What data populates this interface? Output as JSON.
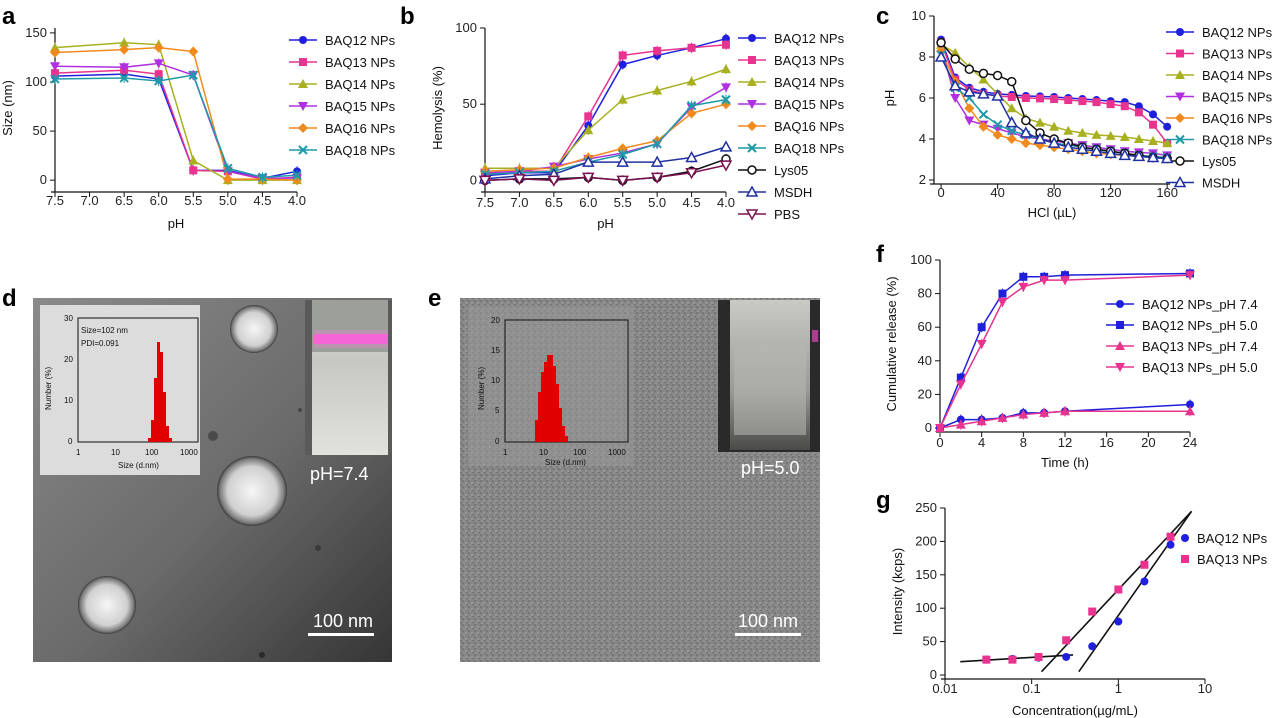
{
  "panels": {
    "a": "a",
    "b": "b",
    "c": "c",
    "d": "d",
    "e": "e",
    "f": "f",
    "g": "g"
  },
  "colors": {
    "BAQ12": "#1f1fdc",
    "BAQ13": "#e8338f",
    "BAQ14": "#a8b020",
    "BAQ15": "#b030e0",
    "BAQ16": "#f08a1e",
    "BAQ18": "#1f9aa8",
    "Lys05": "#111111",
    "MSDH": "#2030a0",
    "PBS": "#7a1050"
  },
  "chart_data": [
    {
      "id": "a",
      "type": "line",
      "xlabel": "pH",
      "ylabel": "Size (nm)",
      "x": [
        7.5,
        6.5,
        6.0,
        5.5,
        5.0,
        4.5,
        4.0
      ],
      "xticks": [
        "7.5",
        "7.0",
        "6.5",
        "6.0",
        "5.5",
        "5.0",
        "4.5",
        "4.0"
      ],
      "yticks": [
        "0",
        "50",
        "100",
        "150"
      ],
      "xlim": [
        7.5,
        4.0
      ],
      "ylim": [
        -8,
        155
      ],
      "series": [
        {
          "name": "BAQ12 NPs",
          "key": "BAQ12",
          "marker": "circle",
          "values": [
            106,
            108,
            103,
            10,
            10,
            2,
            9
          ]
        },
        {
          "name": "BAQ13 NPs",
          "key": "BAQ13",
          "marker": "square",
          "values": [
            109,
            112,
            108,
            10,
            9,
            1,
            3
          ]
        },
        {
          "name": "BAQ14 NPs",
          "key": "BAQ14",
          "marker": "triangle",
          "values": [
            135,
            140,
            138,
            20,
            0,
            0,
            0
          ]
        },
        {
          "name": "BAQ15 NPs",
          "key": "BAQ15",
          "marker": "tri-down",
          "values": [
            116,
            115,
            119,
            107,
            9,
            2,
            2
          ]
        },
        {
          "name": "BAQ16 NPs",
          "key": "BAQ16",
          "marker": "diamond",
          "values": [
            130,
            133,
            135,
            131,
            1,
            1,
            0
          ]
        },
        {
          "name": "BAQ18 NPs",
          "key": "BAQ18",
          "marker": "x",
          "values": [
            103,
            104,
            101,
            107,
            12,
            3,
            5
          ]
        }
      ]
    },
    {
      "id": "b",
      "type": "line",
      "xlabel": "pH",
      "ylabel": "Hemolysis (%)",
      "x": [
        7.5,
        7.0,
        6.5,
        6.0,
        5.5,
        5.0,
        4.5,
        4.0
      ],
      "xticks": [
        "7.5",
        "7.0",
        "6.5",
        "6.0",
        "5.5",
        "5.0",
        "4.5",
        "4.0"
      ],
      "yticks": [
        "0",
        "50",
        "100"
      ],
      "xlim": [
        7.5,
        4.0
      ],
      "ylim": [
        -5,
        100
      ],
      "series": [
        {
          "name": "BAQ12 NPs",
          "key": "BAQ12",
          "marker": "circle",
          "values": [
            3,
            5,
            5,
            36,
            76,
            82,
            87,
            93
          ]
        },
        {
          "name": "BAQ13 NPs",
          "key": "BAQ13",
          "marker": "square",
          "values": [
            4,
            6,
            6,
            42,
            82,
            85,
            87,
            89
          ]
        },
        {
          "name": "BAQ14 NPs",
          "key": "BAQ14",
          "marker": "triangle",
          "values": [
            8,
            8,
            8,
            33,
            53,
            59,
            65,
            73
          ]
        },
        {
          "name": "BAQ15 NPs",
          "key": "BAQ15",
          "marker": "tri-down",
          "values": [
            5,
            6,
            9,
            14,
            18,
            24,
            48,
            61
          ]
        },
        {
          "name": "BAQ16 NPs",
          "key": "BAQ16",
          "marker": "diamond",
          "values": [
            6,
            7,
            8,
            15,
            21,
            26,
            44,
            50
          ]
        },
        {
          "name": "BAQ18 NPs",
          "key": "BAQ18",
          "marker": "x",
          "values": [
            4,
            5,
            6,
            12,
            17,
            24,
            49,
            53
          ]
        },
        {
          "name": "Lys05",
          "key": "Lys05",
          "marker": "open-circle",
          "values": [
            0,
            1,
            1,
            2,
            0,
            2,
            6,
            14
          ]
        },
        {
          "name": "MSDH",
          "key": "MSDH",
          "marker": "open-triangle",
          "values": [
            1,
            3,
            4,
            12,
            12,
            12,
            15,
            22
          ]
        },
        {
          "name": "PBS",
          "key": "PBS",
          "marker": "open-tri-down",
          "values": [
            0,
            1,
            0,
            2,
            0,
            2,
            5,
            10
          ]
        }
      ]
    },
    {
      "id": "c",
      "type": "line",
      "xlabel": "HCl (µL)",
      "ylabel": "pH",
      "xticks": [
        "0",
        "40",
        "80",
        "120",
        "160"
      ],
      "yticks": [
        "2",
        "4",
        "6",
        "8",
        "10"
      ],
      "xlim": [
        -5,
        162
      ],
      "ylim": [
        2,
        10
      ],
      "series": [
        {
          "name": "BAQ12 NPs",
          "key": "BAQ12",
          "marker": "circle",
          "x": [
            0,
            10,
            20,
            30,
            40,
            50,
            60,
            70,
            80,
            90,
            100,
            110,
            120,
            130,
            140,
            150,
            160
          ],
          "values": [
            8.85,
            7.0,
            6.5,
            6.3,
            6.2,
            6.15,
            6.1,
            6.08,
            6.05,
            6.0,
            5.95,
            5.9,
            5.85,
            5.8,
            5.6,
            5.2,
            4.6
          ]
        },
        {
          "name": "BAQ13 NPs",
          "key": "BAQ13",
          "marker": "square",
          "x": [
            0,
            10,
            20,
            30,
            40,
            50,
            60,
            70,
            80,
            90,
            100,
            110,
            120,
            130,
            140,
            150,
            160
          ],
          "values": [
            8.7,
            6.9,
            6.4,
            6.2,
            6.1,
            6.05,
            6.0,
            5.98,
            5.95,
            5.9,
            5.85,
            5.8,
            5.7,
            5.6,
            5.3,
            4.7,
            3.8
          ]
        },
        {
          "name": "BAQ14 NPs",
          "key": "BAQ14",
          "marker": "triangle",
          "x": [
            0,
            10,
            20,
            30,
            40,
            50,
            60,
            70,
            80,
            90,
            100,
            110,
            120,
            130,
            140,
            150,
            160
          ],
          "values": [
            8.6,
            8.2,
            7.5,
            6.9,
            6.2,
            5.5,
            5.0,
            4.8,
            4.6,
            4.4,
            4.3,
            4.2,
            4.15,
            4.1,
            4.0,
            3.9,
            3.8
          ]
        },
        {
          "name": "BAQ15 NPs",
          "key": "BAQ15",
          "marker": "tri-down",
          "x": [
            0,
            10,
            20,
            30,
            40,
            50,
            60,
            70,
            80,
            90,
            100,
            110,
            120,
            130,
            140,
            150,
            160
          ],
          "values": [
            8.5,
            6.0,
            4.9,
            4.7,
            4.5,
            4.3,
            4.1,
            4.0,
            3.9,
            3.8,
            3.7,
            3.6,
            3.5,
            3.4,
            3.35,
            3.3,
            3.2
          ]
        },
        {
          "name": "BAQ16 NPs",
          "key": "BAQ16",
          "marker": "diamond",
          "x": [
            0,
            10,
            20,
            30,
            40,
            50,
            60,
            70,
            80,
            90,
            100,
            110,
            120,
            130,
            140,
            150,
            160
          ],
          "values": [
            8.3,
            6.8,
            5.5,
            4.6,
            4.2,
            4.0,
            3.8,
            3.7,
            3.6,
            3.5,
            3.4,
            3.3,
            3.25,
            3.2,
            3.15,
            3.1,
            3.1
          ]
        },
        {
          "name": "BAQ18 NPs",
          "key": "BAQ18",
          "marker": "x",
          "x": [
            0,
            10,
            20,
            30,
            40,
            50,
            60,
            70,
            80,
            90,
            100,
            110,
            120,
            130,
            140,
            150,
            160
          ],
          "values": [
            8.1,
            6.5,
            6.0,
            5.2,
            4.7,
            4.4,
            4.2,
            4.0,
            3.8,
            3.7,
            3.6,
            3.5,
            3.4,
            3.3,
            3.2,
            3.15,
            3.1
          ]
        },
        {
          "name": "Lys05",
          "key": "Lys05",
          "marker": "open-circle",
          "x": [
            0,
            10,
            20,
            30,
            40,
            50,
            60,
            70,
            80,
            90,
            100,
            110,
            120,
            130,
            140,
            150,
            160
          ],
          "values": [
            8.7,
            7.9,
            7.4,
            7.2,
            7.1,
            6.8,
            4.9,
            4.3,
            4.0,
            3.8,
            3.6,
            3.5,
            3.4,
            3.3,
            3.2,
            3.1,
            3.05
          ]
        },
        {
          "name": "MSDH",
          "key": "MSDH",
          "marker": "open-triangle",
          "x": [
            0,
            10,
            20,
            30,
            40,
            50,
            60,
            70,
            80,
            90,
            100,
            110,
            120,
            130,
            140,
            150,
            160
          ],
          "values": [
            8.0,
            6.6,
            6.3,
            6.2,
            6.1,
            4.8,
            4.3,
            4.0,
            3.8,
            3.6,
            3.5,
            3.4,
            3.3,
            3.2,
            3.15,
            3.1,
            3.05
          ]
        }
      ]
    },
    {
      "id": "f",
      "type": "line",
      "xlabel": "Time (h)",
      "ylabel": "Cumulative release (%)",
      "x": [
        0,
        2,
        4,
        6,
        8,
        10,
        12,
        24
      ],
      "xticks": [
        "0",
        "4",
        "8",
        "12",
        "16",
        "20",
        "24"
      ],
      "yticks": [
        "0",
        "20",
        "40",
        "60",
        "80",
        "100"
      ],
      "xlim": [
        0,
        24
      ],
      "ylim": [
        0,
        100
      ],
      "series": [
        {
          "name": "BAQ12 NPs_pH 7.4",
          "key": "BAQ12",
          "marker": "circle",
          "values": [
            0,
            5,
            5,
            6,
            9,
            9,
            10,
            14
          ]
        },
        {
          "name": "BAQ12 NPs_pH 5.0",
          "key": "BAQ12",
          "marker": "square",
          "values": [
            0,
            30,
            60,
            80,
            90,
            90,
            91,
            92
          ]
        },
        {
          "name": "BAQ13 NPs_pH 7.4",
          "key": "BAQ13",
          "marker": "triangle",
          "values": [
            0,
            2,
            4,
            6,
            8,
            9,
            10,
            10
          ]
        },
        {
          "name": "BAQ13 NPs_pH 5.0",
          "key": "BAQ13",
          "marker": "tri-down",
          "values": [
            0,
            26,
            50,
            75,
            84,
            88,
            88,
            91
          ]
        }
      ]
    },
    {
      "id": "g",
      "type": "scatter",
      "xlabel": "Concentration(µg/mL)",
      "ylabel": "Intensity (kcps)",
      "xscale": "log",
      "xticks": [
        "0.01",
        "0.1",
        "1",
        "10"
      ],
      "yticks": [
        "0",
        "50",
        "100",
        "150",
        "200",
        "250"
      ],
      "xlim": [
        0.01,
        10
      ],
      "ylim": [
        0,
        250
      ],
      "series": [
        {
          "name": "BAQ12 NPs",
          "key": "BAQ12",
          "marker": "circle",
          "x": [
            0.03,
            0.06,
            0.12,
            0.25,
            0.5,
            1,
            2,
            4
          ],
          "values": [
            23,
            24,
            26,
            27,
            43,
            80,
            140,
            195
          ]
        },
        {
          "name": "BAQ13 NPs",
          "key": "BAQ13",
          "marker": "square",
          "x": [
            0.03,
            0.06,
            0.12,
            0.25,
            0.5,
            1,
            2,
            4
          ],
          "values": [
            23,
            23,
            27,
            52,
            95,
            128,
            165,
            207
          ]
        }
      ],
      "fit_lines": [
        {
          "x": [
            0.015,
            0.3
          ],
          "values": [
            20,
            30
          ]
        },
        {
          "x": [
            0.13,
            7
          ],
          "values": [
            5,
            245
          ]
        },
        {
          "x": [
            0.35,
            7
          ],
          "values": [
            5,
            245
          ]
        }
      ]
    }
  ],
  "images": {
    "d": {
      "hist_size": "Size=102 nm",
      "hist_pdi": "PDI=0.091",
      "hist_xlabel": "Size (d.nm)",
      "hist_ylabel": "Number (%)",
      "hist_xticks": [
        "1",
        "10",
        "100",
        "1000"
      ],
      "hist_yticks": [
        "0",
        "10",
        "20",
        "30"
      ],
      "photo_label": "pH=7.4",
      "scale_bar": "100 nm"
    },
    "e": {
      "hist_xlabel": "Size (d.nm)",
      "hist_ylabel": "Number (%)",
      "hist_xticks": [
        "1",
        "10",
        "100",
        "1000"
      ],
      "hist_yticks": [
        "0",
        "5",
        "10",
        "15",
        "20"
      ],
      "photo_label": "pH=5.0",
      "scale_bar": "100 nm"
    }
  }
}
